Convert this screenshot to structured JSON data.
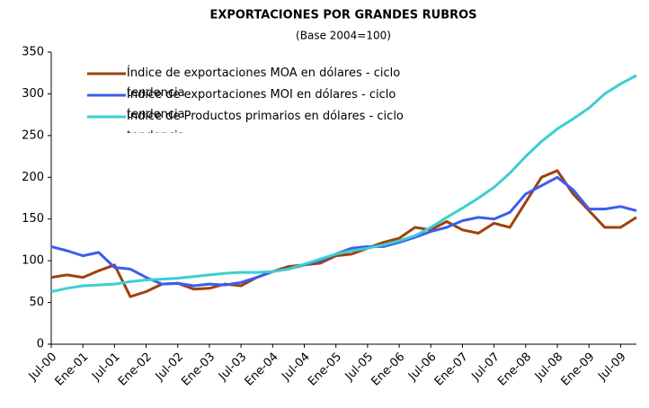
{
  "chart_data": {
    "type": "line",
    "title": "EXPORTACIONES POR GRANDES RUBROS",
    "subtitle": "(Base 2004=100)",
    "categories": [
      "Jul-00",
      null,
      "Ene-01",
      null,
      "Jul-01",
      null,
      "Ene-02",
      null,
      "Jul-02",
      null,
      "Ene-03",
      null,
      "Jul-03",
      null,
      "Ene-04",
      null,
      "Jul-04",
      null,
      "Ene-05",
      null,
      "Jul-05",
      null,
      "Ene-06",
      null,
      "Jul-06",
      null,
      "Ene-07",
      null,
      "Jul-07",
      null,
      "Ene-08",
      null,
      "Jul-08",
      null,
      "Ene-09",
      null,
      "Jul-09",
      null
    ],
    "series": [
      {
        "name": "Índice de exportaciones MOA en dólares - ciclo tendencia",
        "color": "#a0410d",
        "values": [
          80,
          83,
          80,
          88,
          95,
          57,
          63,
          72,
          73,
          66,
          67,
          72,
          70,
          80,
          87,
          93,
          95,
          97,
          106,
          108,
          115,
          122,
          127,
          140,
          137,
          147,
          137,
          133,
          145,
          140,
          170,
          200,
          208,
          180,
          160,
          140,
          140,
          152
        ]
      },
      {
        "name": "Índice de exportaciones MOI en dólares - ciclo tendencia",
        "color": "#3a5ef0",
        "values": [
          117,
          112,
          106,
          110,
          92,
          90,
          80,
          72,
          73,
          70,
          72,
          71,
          74,
          80,
          87,
          90,
          95,
          100,
          108,
          115,
          117,
          117,
          122,
          128,
          135,
          140,
          148,
          152,
          150,
          158,
          180,
          190,
          200,
          185,
          162,
          162,
          165,
          160
        ]
      },
      {
        "name": "Índice de Productos primarios en dólares - ciclo tendencia",
        "color": "#3ccfcf",
        "values": [
          63,
          67,
          70,
          71,
          72,
          75,
          77,
          78,
          79,
          81,
          83,
          85,
          86,
          86,
          87,
          90,
          96,
          102,
          108,
          112,
          115,
          119,
          124,
          130,
          140,
          152,
          163,
          175,
          188,
          205,
          225,
          243,
          258,
          270,
          283,
          300,
          312,
          322
        ]
      }
    ],
    "ylim": [
      0,
      350
    ],
    "yticks": [
      0,
      50,
      100,
      150,
      200,
      250,
      300,
      350
    ],
    "grid": false,
    "legend": "upper left"
  }
}
